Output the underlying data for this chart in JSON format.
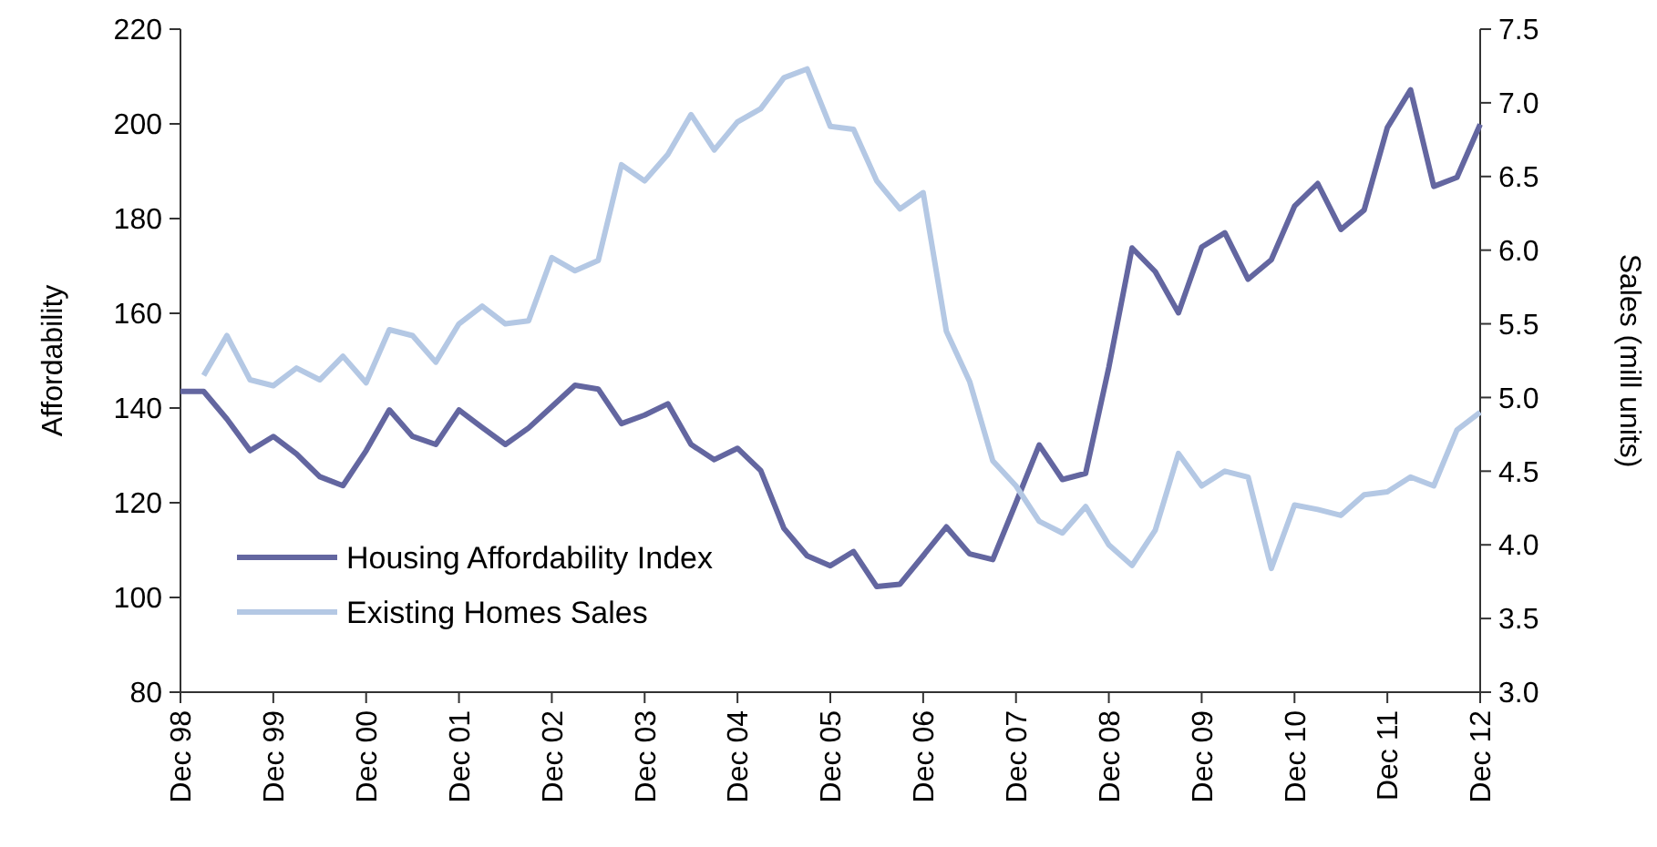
{
  "chart_data": {
    "type": "line",
    "ylabel": "Affordability",
    "y2label": "Sales (mill units)",
    "categories": [
      "Dec 98",
      null,
      null,
      null,
      "Dec 99",
      null,
      null,
      null,
      "Dec 00",
      null,
      null,
      null,
      "Dec 01",
      null,
      null,
      null,
      "Dec 02",
      null,
      null,
      null,
      "Dec 03",
      null,
      null,
      null,
      "Dec 04",
      null,
      null,
      null,
      "Dec 05",
      null,
      null,
      null,
      "Dec 06",
      null,
      null,
      null,
      "Dec 07",
      null,
      null,
      null,
      "Dec 08",
      null,
      null,
      null,
      "Dec 09",
      null,
      null,
      null,
      "Dec 10",
      null,
      null,
      null,
      "Dec 11",
      null,
      null,
      null,
      "Dec 12"
    ],
    "series": [
      {
        "name": "Housing Affordability Index",
        "color": "#6366a0",
        "values": [
          143.5,
          143.5,
          137.7,
          131,
          134,
          130.3,
          125.5,
          123.6,
          131,
          139.6,
          134,
          132.3,
          139.6,
          135.9,
          132.3,
          135.8,
          140.3,
          144.8,
          144,
          136.7,
          138.5,
          140.9,
          132.3,
          129.1,
          131.5,
          126.8,
          114.6,
          108.8,
          106.7,
          109.7,
          102.3,
          102.8,
          108.8,
          114.9,
          109.2,
          108,
          120,
          132.2,
          124.9,
          126.2,
          148.6,
          173.8,
          168.8,
          160.1,
          174,
          177,
          167.2,
          171.3,
          182.6,
          187.4,
          177.7,
          181.8,
          199.2,
          207.2,
          186.8,
          188.7,
          199.9
        ]
      },
      {
        "name": "Existing Homes Sales",
        "color": "#b4c8e4",
        "axis": "y2",
        "values": [
          null,
          5.15,
          5.42,
          5.12,
          5.08,
          5.2,
          5.12,
          5.28,
          5.1,
          5.46,
          5.42,
          5.24,
          5.5,
          5.62,
          5.5,
          5.52,
          5.95,
          5.86,
          5.93,
          6.58,
          6.47,
          6.65,
          6.92,
          6.68,
          6.87,
          6.96,
          7.17,
          7.23,
          6.84,
          6.82,
          6.47,
          6.28,
          6.39,
          5.45,
          5.11,
          4.57,
          4.4,
          4.16,
          4.08,
          4.26,
          4,
          3.86,
          4.1,
          4.62,
          4.4,
          4.5,
          4.46,
          3.84,
          4.27,
          4.24,
          4.2,
          4.34,
          4.36,
          4.46,
          4.4,
          4.78,
          4.9
        ]
      }
    ],
    "ylim": [
      80,
      220
    ],
    "yticks": [
      80,
      100,
      120,
      140,
      160,
      180,
      200,
      220
    ],
    "y2lim": [
      3,
      7.5
    ],
    "y2ticks": [
      {
        "value": 3,
        "label": "3.0"
      },
      {
        "value": 3.5,
        "label": "3.5"
      },
      {
        "value": 4,
        "label": "4.0"
      },
      {
        "value": 4.5,
        "label": "4.5"
      },
      {
        "value": 5,
        "label": "5.0"
      },
      {
        "value": 5.5,
        "label": "5.5"
      },
      {
        "value": 6,
        "label": "6.0"
      },
      {
        "value": 6.5,
        "label": "6.5"
      },
      {
        "value": 7,
        "label": "7.0"
      },
      {
        "value": 7.5,
        "label": "7.5"
      }
    ],
    "legend": "bottom left",
    "grid": false,
    "marker": "none",
    "line_style": "solid"
  }
}
